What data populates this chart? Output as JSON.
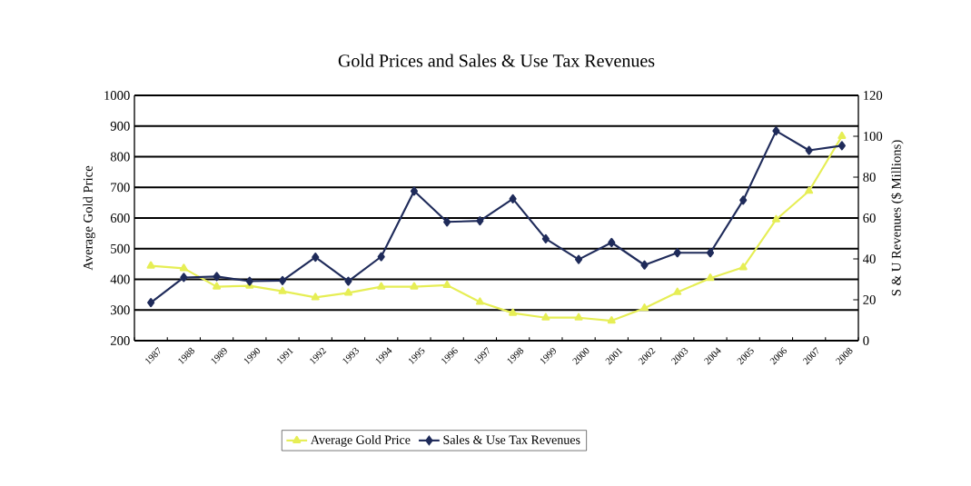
{
  "chart_data": {
    "type": "line",
    "title": "Gold Prices and Sales & Use Tax Revenues",
    "ylabel": "Average Gold Price",
    "y2label": "S & U Revenues ($ Millions)",
    "categories": [
      "1987",
      "1988",
      "1989",
      "1990",
      "1991",
      "1992",
      "1993",
      "1994",
      "1995",
      "1996",
      "1997",
      "1998",
      "1999",
      "2000",
      "2001",
      "2002",
      "2003",
      "2004",
      "2005",
      "2006",
      "2007",
      "2008"
    ],
    "series": [
      {
        "name": "Average Gold Price",
        "color": "#e6ee55",
        "marker": "triangle",
        "values": [
          444,
          436,
          376,
          379,
          361,
          341,
          356,
          376,
          376,
          381,
          326,
          290,
          275,
          275,
          265,
          306,
          358,
          404,
          439,
          595,
          688,
          867
        ]
      },
      {
        "name": "Sales & Use Tax Revenues",
        "color": "#1f2b5a",
        "marker": "diamond",
        "axis": "y2",
        "values": [
          18.6,
          30.9,
          31.4,
          29.1,
          29.4,
          40.8,
          29.1,
          41.1,
          73.2,
          58.1,
          58.6,
          69.4,
          49.8,
          39.7,
          48.0,
          37.0,
          43.0,
          43.0,
          68.7,
          102.6,
          93.1,
          95.4
        ]
      }
    ],
    "ylim": [
      200,
      1000
    ],
    "yticks": [
      200,
      300,
      400,
      500,
      600,
      700,
      800,
      900,
      1000
    ],
    "y2lim": [
      0,
      120
    ],
    "y2ticks": [
      0,
      20,
      40,
      60,
      80,
      100,
      120
    ],
    "grid": "y",
    "legend": "bottom"
  }
}
